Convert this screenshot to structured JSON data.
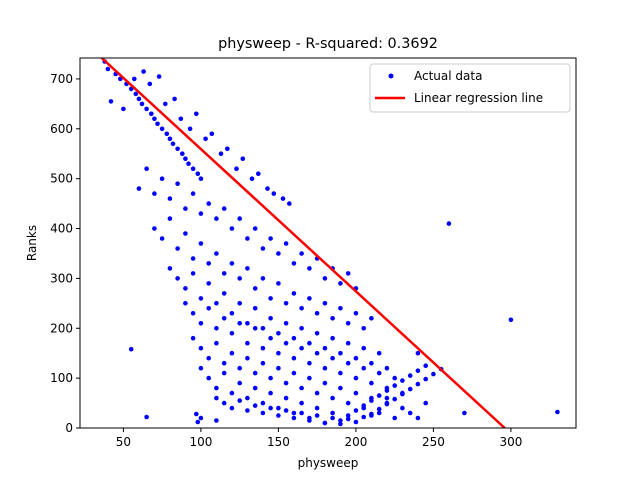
{
  "chart_data": {
    "type": "scatter",
    "title": "physweep - R-squared: 0.3692",
    "xlabel": "physweep",
    "ylabel": "Ranks",
    "xlim": [
      22,
      342
    ],
    "ylim": [
      0,
      742
    ],
    "xticks": [
      50,
      100,
      150,
      200,
      250,
      300
    ],
    "yticks": [
      0,
      100,
      200,
      300,
      400,
      500,
      600,
      700
    ],
    "grid": false,
    "legend_position": "top-right",
    "legend": [
      "Actual data",
      "Linear regression line"
    ],
    "colors": {
      "points": "#0000ff",
      "line": "#ff0000"
    },
    "regression": {
      "x": [
        36,
        296
      ],
      "y": [
        742,
        0
      ]
    },
    "series": [
      {
        "name": "Actual data",
        "x": [
          38,
          40,
          45,
          48,
          52,
          55,
          58,
          60,
          62,
          65,
          68,
          70,
          72,
          75,
          78,
          80,
          82,
          85,
          88,
          90,
          92,
          95,
          98,
          100,
          42,
          50,
          57,
          63,
          67,
          73,
          77,
          83,
          87,
          93,
          97,
          103,
          107,
          113,
          117,
          123,
          127,
          133,
          137,
          143,
          147,
          153,
          157,
          60,
          65,
          70,
          75,
          80,
          85,
          90,
          95,
          100,
          105,
          110,
          115,
          120,
          125,
          130,
          135,
          140,
          145,
          150,
          155,
          160,
          165,
          170,
          175,
          180,
          185,
          190,
          195,
          200,
          70,
          75,
          80,
          85,
          90,
          95,
          100,
          105,
          110,
          115,
          120,
          125,
          130,
          135,
          140,
          145,
          150,
          155,
          160,
          165,
          170,
          175,
          180,
          185,
          190,
          195,
          200,
          205,
          210,
          80,
          85,
          90,
          95,
          100,
          105,
          110,
          115,
          120,
          125,
          130,
          135,
          140,
          145,
          150,
          155,
          160,
          165,
          170,
          175,
          180,
          185,
          190,
          195,
          200,
          205,
          210,
          215,
          220,
          90,
          95,
          100,
          105,
          110,
          115,
          120,
          125,
          130,
          135,
          140,
          145,
          150,
          155,
          160,
          165,
          170,
          175,
          180,
          185,
          190,
          195,
          200,
          205,
          210,
          215,
          220,
          225,
          230,
          95,
          100,
          105,
          110,
          115,
          120,
          125,
          130,
          135,
          140,
          145,
          150,
          155,
          160,
          165,
          170,
          175,
          180,
          185,
          190,
          195,
          200,
          205,
          210,
          215,
          220,
          225,
          230,
          235,
          240,
          100,
          105,
          110,
          115,
          120,
          125,
          130,
          135,
          140,
          145,
          150,
          155,
          160,
          165,
          170,
          175,
          180,
          185,
          190,
          195,
          200,
          205,
          210,
          215,
          220,
          225,
          230,
          235,
          240,
          245,
          110,
          115,
          120,
          125,
          130,
          135,
          140,
          145,
          150,
          155,
          160,
          165,
          170,
          175,
          180,
          185,
          190,
          195,
          200,
          205,
          210,
          215,
          220,
          225,
          230,
          235,
          240,
          245,
          250,
          255,
          65,
          55,
          100,
          110,
          97,
          98,
          300,
          330,
          245,
          270,
          260,
          240,
          210,
          220
        ],
        "y": [
          735,
          720,
          710,
          700,
          690,
          680,
          670,
          660,
          650,
          640,
          630,
          620,
          610,
          600,
          590,
          580,
          570,
          560,
          550,
          540,
          530,
          520,
          510,
          500,
          655,
          640,
          700,
          715,
          690,
          705,
          650,
          660,
          620,
          600,
          630,
          580,
          590,
          550,
          560,
          520,
          540,
          500,
          510,
          480,
          470,
          460,
          450,
          480,
          520,
          470,
          500,
          460,
          490,
          440,
          470,
          430,
          450,
          420,
          440,
          400,
          420,
          380,
          400,
          360,
          380,
          350,
          370,
          330,
          350,
          320,
          340,
          300,
          320,
          290,
          310,
          280,
          400,
          380,
          420,
          360,
          390,
          340,
          370,
          330,
          350,
          310,
          330,
          300,
          320,
          280,
          300,
          260,
          290,
          250,
          270,
          240,
          260,
          230,
          250,
          220,
          240,
          210,
          230,
          200,
          220,
          320,
          300,
          280,
          310,
          260,
          290,
          250,
          270,
          230,
          250,
          210,
          240,
          200,
          220,
          190,
          210,
          180,
          200,
          170,
          190,
          160,
          180,
          150,
          170,
          140,
          160,
          130,
          150,
          120,
          250,
          230,
          210,
          240,
          200,
          220,
          190,
          210,
          170,
          200,
          160,
          180,
          150,
          170,
          140,
          160,
          130,
          150,
          120,
          140,
          110,
          130,
          100,
          120,
          90,
          110,
          80,
          100,
          70,
          180,
          160,
          140,
          170,
          130,
          150,
          120,
          140,
          110,
          130,
          100,
          120,
          90,
          110,
          80,
          100,
          70,
          90,
          60,
          80,
          50,
          70,
          40,
          60,
          30,
          50,
          20,
          40,
          30,
          20,
          120,
          100,
          80,
          110,
          70,
          90,
          60,
          80,
          50,
          70,
          40,
          60,
          30,
          50,
          20,
          40,
          10,
          30,
          15,
          25,
          35,
          45,
          55,
          65,
          75,
          85,
          95,
          105,
          115,
          125,
          60,
          50,
          40,
          55,
          35,
          45,
          30,
          40,
          25,
          35,
          20,
          30,
          15,
          25,
          10,
          20,
          8,
          18,
          12,
          22,
          28,
          38,
          48,
          58,
          68,
          78,
          88,
          98,
          108,
          118,
          22,
          158,
          20,
          15,
          28,
          12,
          217,
          32,
          50,
          30,
          410,
          150,
          25,
          60
        ]
      }
    ]
  }
}
